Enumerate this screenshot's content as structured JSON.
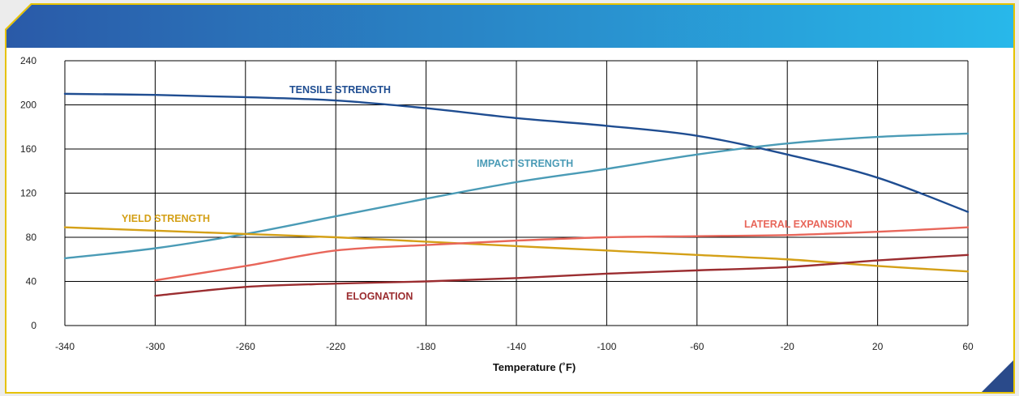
{
  "colors": {
    "header_start": "#2a5aa8",
    "header_end": "#28b8ea",
    "panel_border": "#e6c200",
    "panel_bg": "#ffffff",
    "grid": "#000000"
  },
  "chart_data": {
    "type": "line",
    "title": "",
    "xlabel": "Temperature (˚F)",
    "ylabel": "",
    "xlim": [
      -340,
      60
    ],
    "ylim": [
      0,
      240
    ],
    "x_ticks": [
      -340,
      -300,
      -260,
      -220,
      -180,
      -140,
      -100,
      -60,
      -20,
      20,
      60
    ],
    "y_ticks": [
      0,
      40,
      80,
      120,
      160,
      200,
      240
    ],
    "grid": true,
    "legend": "none (inline series labels)",
    "series": [
      {
        "name": "TENSILE STRENGTH",
        "color": "#1f4d91",
        "x": [
          -340,
          -300,
          -260,
          -220,
          -180,
          -140,
          -100,
          -60,
          -20,
          20,
          60
        ],
        "y": [
          210,
          209,
          207,
          204,
          197,
          188,
          181,
          172,
          155,
          134,
          103
        ]
      },
      {
        "name": "IMPACT STRENGTH",
        "color": "#4a9bb6",
        "x": [
          -340,
          -300,
          -260,
          -220,
          -180,
          -140,
          -100,
          -60,
          -20,
          20,
          60
        ],
        "y": [
          61,
          70,
          83,
          99,
          115,
          130,
          142,
          155,
          165,
          171,
          174
        ]
      },
      {
        "name": "YIELD STRENGTH",
        "color": "#d4a017",
        "x": [
          -340,
          -300,
          -260,
          -220,
          -180,
          -140,
          -100,
          -60,
          -20,
          20,
          60
        ],
        "y": [
          89,
          86,
          83,
          80,
          76,
          72,
          68,
          64,
          60,
          54,
          49
        ]
      },
      {
        "name": "LATERAL EXPANSION",
        "color": "#e8665a",
        "x": [
          -300,
          -260,
          -220,
          -180,
          -140,
          -100,
          -60,
          -20,
          20,
          60
        ],
        "y": [
          41,
          54,
          68,
          73,
          77,
          80,
          81,
          82,
          85,
          89
        ]
      },
      {
        "name": "ELOGNATION",
        "color": "#9b2d30",
        "x": [
          -300,
          -260,
          -220,
          -180,
          -140,
          -100,
          -60,
          -20,
          20,
          60
        ],
        "y": [
          27,
          35,
          38,
          40,
          43,
          47,
          50,
          53,
          59,
          64
        ]
      }
    ]
  }
}
